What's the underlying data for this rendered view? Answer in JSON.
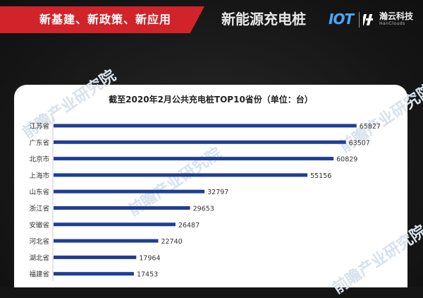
{
  "header": {
    "banner_text": "新基建、新政策、新应用",
    "brand_title": "新能源充电桩",
    "iot_mark": "IOT",
    "company_name": "瀚云科技",
    "company_en": "HanClouds"
  },
  "watermark": "前瞻产业研究院",
  "colors": {
    "bar": "#1f3f93",
    "banner": "#d2232a",
    "iot": "#46a7ff"
  },
  "chart_data": {
    "type": "bar",
    "orientation": "horizontal",
    "title": "截至2020年2月公共充电桩TOP10省份（单位：台）",
    "categories": [
      "江苏省",
      "广东省",
      "北京市",
      "上海市",
      "山东省",
      "浙江省",
      "安徽省",
      "河北省",
      "湖北省",
      "福建省"
    ],
    "values": [
      65827,
      63507,
      60829,
      55156,
      32797,
      29653,
      26487,
      22740,
      17964,
      17453
    ],
    "xlim": [
      0,
      70000
    ],
    "grid": false,
    "legend": false
  }
}
